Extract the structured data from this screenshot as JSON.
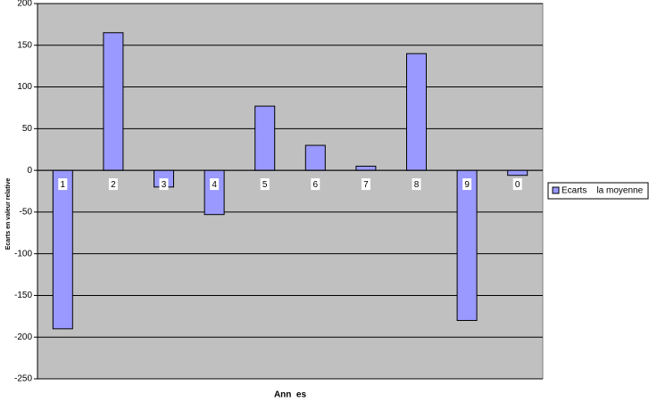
{
  "chart_data": {
    "type": "bar",
    "y_label": "Ecarts en valeur relative",
    "x_label": "Ann  es",
    "categories": [
      "1",
      "2",
      "3",
      "4",
      "5",
      "6",
      "7",
      "8",
      "9",
      "0"
    ],
    "series": [
      {
        "name": "Ecarts    la moyenne",
        "color": "#9999ff",
        "values": [
          -190,
          165,
          -20,
          -53,
          77,
          30,
          5,
          140,
          -180,
          -6
        ]
      }
    ],
    "ylim": [
      -250,
      200
    ],
    "yticks": [
      -250,
      -200,
      -150,
      -100,
      -50,
      0,
      50,
      100,
      150,
      200
    ],
    "grid": true,
    "legend": "right"
  }
}
